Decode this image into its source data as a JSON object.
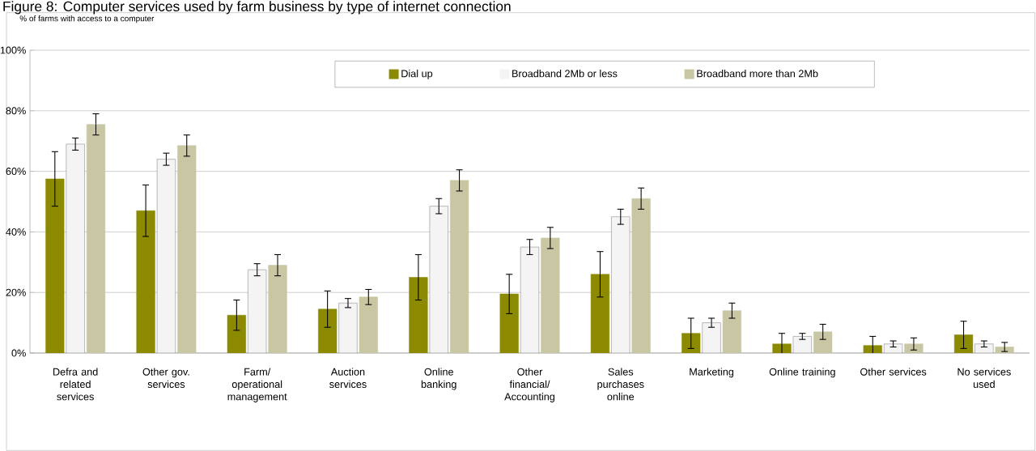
{
  "chart_data": {
    "type": "bar",
    "title": "Figure 8: Computer services used by farm business by type of internet connection",
    "ylabel": "% of farms with access to a computer",
    "categories": [
      "Defra and related services",
      "Other gov. services",
      "Farm/ operational management",
      "Auction services",
      "Online banking",
      "Other financial/ Accounting",
      "Sales purchases online",
      "Marketing",
      "Online training",
      "Other services",
      "No services used"
    ],
    "series": [
      {
        "name": "Dial up",
        "color": "#8b8a00",
        "values": [
          57.5,
          47,
          12.5,
          14.5,
          25,
          19.5,
          26,
          6.5,
          3,
          2.5,
          6
        ],
        "errors": [
          9,
          8.5,
          5,
          6,
          7.5,
          6.5,
          7.5,
          5,
          3.5,
          3,
          4.5
        ]
      },
      {
        "name": "Broadband 2Mb or less",
        "color": "#f4f4f4",
        "values": [
          69,
          64,
          27.5,
          16.5,
          48.5,
          35,
          45,
          10,
          5.5,
          3,
          3
        ],
        "errors": [
          2,
          2,
          2,
          1.5,
          2.5,
          2.5,
          2.5,
          1.5,
          1,
          1,
          1
        ]
      },
      {
        "name": "Broadband more than 2Mb",
        "color": "#c9c7a3",
        "values": [
          75.5,
          68.5,
          29,
          18.5,
          57,
          38,
          51,
          14,
          7,
          3,
          2
        ],
        "errors": [
          3.5,
          3.5,
          3.5,
          2.5,
          3.5,
          3.5,
          3.5,
          2.5,
          2.5,
          2,
          1.5
        ]
      }
    ],
    "ylim": [
      0,
      100
    ],
    "yticks": [
      {
        "value": 0,
        "label": "0%"
      },
      {
        "value": 20,
        "label": "20%"
      },
      {
        "value": 40,
        "label": "40%"
      },
      {
        "value": 60,
        "label": "60%"
      },
      {
        "value": 80,
        "label": "80%"
      },
      {
        "value": 100,
        "label": "100%"
      }
    ],
    "grid": "y",
    "legend": "top"
  }
}
